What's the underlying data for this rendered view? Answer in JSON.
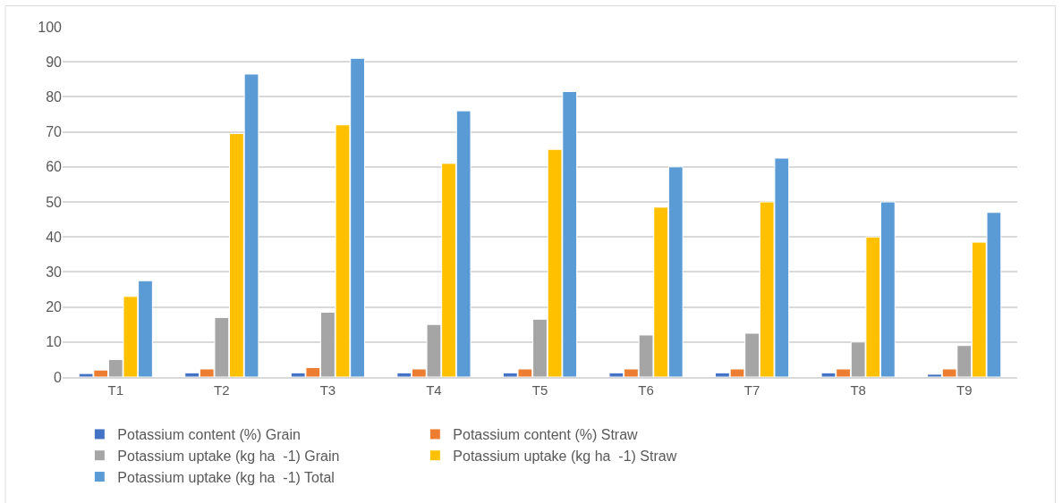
{
  "chart_data": {
    "type": "bar",
    "categories": [
      "T1",
      "T2",
      "T3",
      "T4",
      "T5",
      "T6",
      "T7",
      "T8",
      "T9"
    ],
    "series": [
      {
        "name": "Potassium content (%) Grain",
        "color": "#4472c4",
        "values": [
          1.0,
          1.2,
          1.2,
          1.2,
          1.2,
          1.2,
          1.2,
          1.2,
          0.8
        ]
      },
      {
        "name": "Potassium content (%) Straw",
        "color": "#ed7d31",
        "values": [
          2.0,
          2.3,
          2.7,
          2.3,
          2.3,
          2.3,
          2.3,
          2.3,
          2.3
        ]
      },
      {
        "name": "Potassium uptake (kg ha  -1) Grain",
        "color": "#a5a5a5",
        "values": [
          5,
          17,
          18.5,
          15,
          16.5,
          12,
          12.5,
          10,
          9
        ]
      },
      {
        "name": "Potassium uptake (kg ha  -1) Straw",
        "color": "#ffc000",
        "values": [
          23,
          69.5,
          72,
          61,
          65,
          48.5,
          50,
          40,
          38.5
        ]
      },
      {
        "name": "Potassium uptake (kg ha  -1) Total",
        "color": "#5b9bd5",
        "values": [
          27.5,
          86.5,
          91,
          76,
          81.5,
          60,
          62.5,
          50,
          47
        ]
      }
    ],
    "ylim": [
      0,
      100
    ],
    "yticks": [
      0,
      10,
      20,
      30,
      40,
      50,
      60,
      70,
      80,
      90,
      100
    ],
    "grid": "y",
    "legend": "bottom"
  }
}
